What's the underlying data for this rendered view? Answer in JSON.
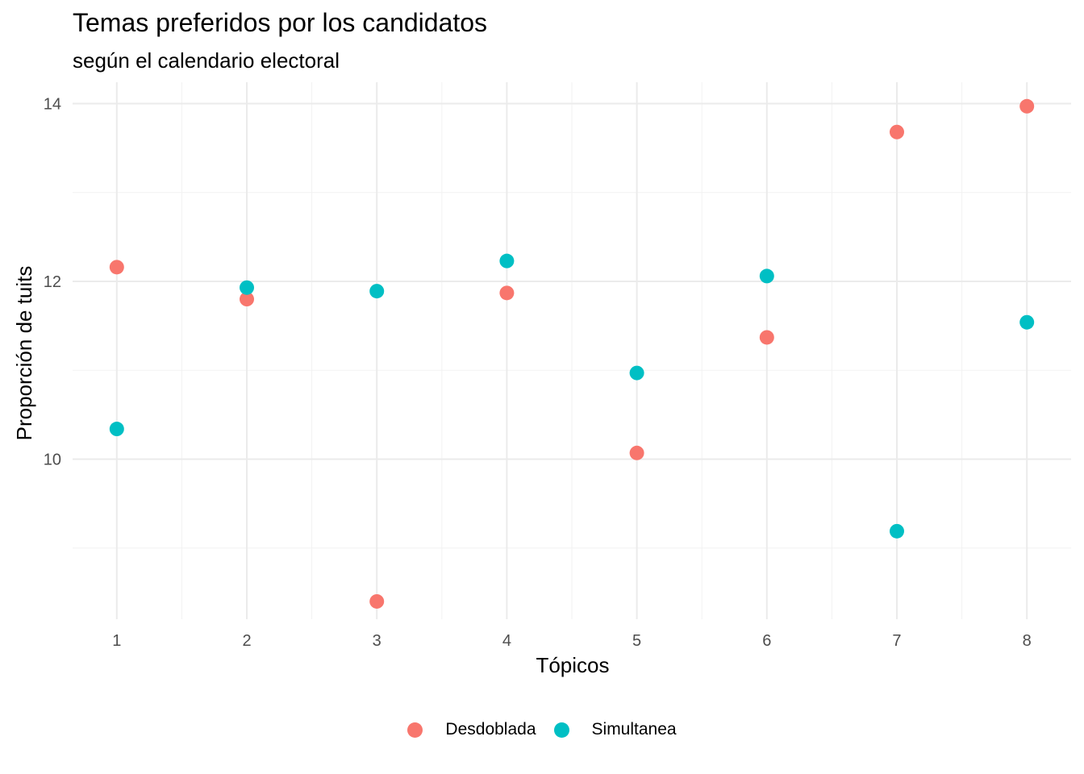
{
  "chart_data": {
    "type": "scatter",
    "title": "Temas preferidos por los candidatos",
    "subtitle": "según el calendario electoral",
    "xlabel": "Tópicos",
    "ylabel": "Proporción de tuits",
    "x_ticks": [
      1,
      2,
      3,
      4,
      5,
      6,
      7,
      8
    ],
    "y_ticks": [
      10,
      12,
      14
    ],
    "xlim": [
      0.66,
      8.34
    ],
    "ylim": [
      8.2,
      14.24
    ],
    "grid": true,
    "legend_position": "bottom",
    "series": [
      {
        "name": "Desdoblada",
        "color": "#F8766D",
        "points": [
          {
            "x": 1,
            "y": 12.16
          },
          {
            "x": 2,
            "y": 11.8
          },
          {
            "x": 3,
            "y": 8.4
          },
          {
            "x": 4,
            "y": 11.87
          },
          {
            "x": 5,
            "y": 10.07
          },
          {
            "x": 6,
            "y": 11.37
          },
          {
            "x": 7,
            "y": 13.68
          },
          {
            "x": 8,
            "y": 13.97
          }
        ]
      },
      {
        "name": "Simultanea",
        "color": "#00BFC4",
        "points": [
          {
            "x": 1,
            "y": 10.34
          },
          {
            "x": 2,
            "y": 11.93
          },
          {
            "x": 3,
            "y": 11.89
          },
          {
            "x": 4,
            "y": 12.23
          },
          {
            "x": 5,
            "y": 10.97
          },
          {
            "x": 6,
            "y": 12.06
          },
          {
            "x": 7,
            "y": 9.19
          },
          {
            "x": 8,
            "y": 11.54
          }
        ]
      }
    ]
  }
}
